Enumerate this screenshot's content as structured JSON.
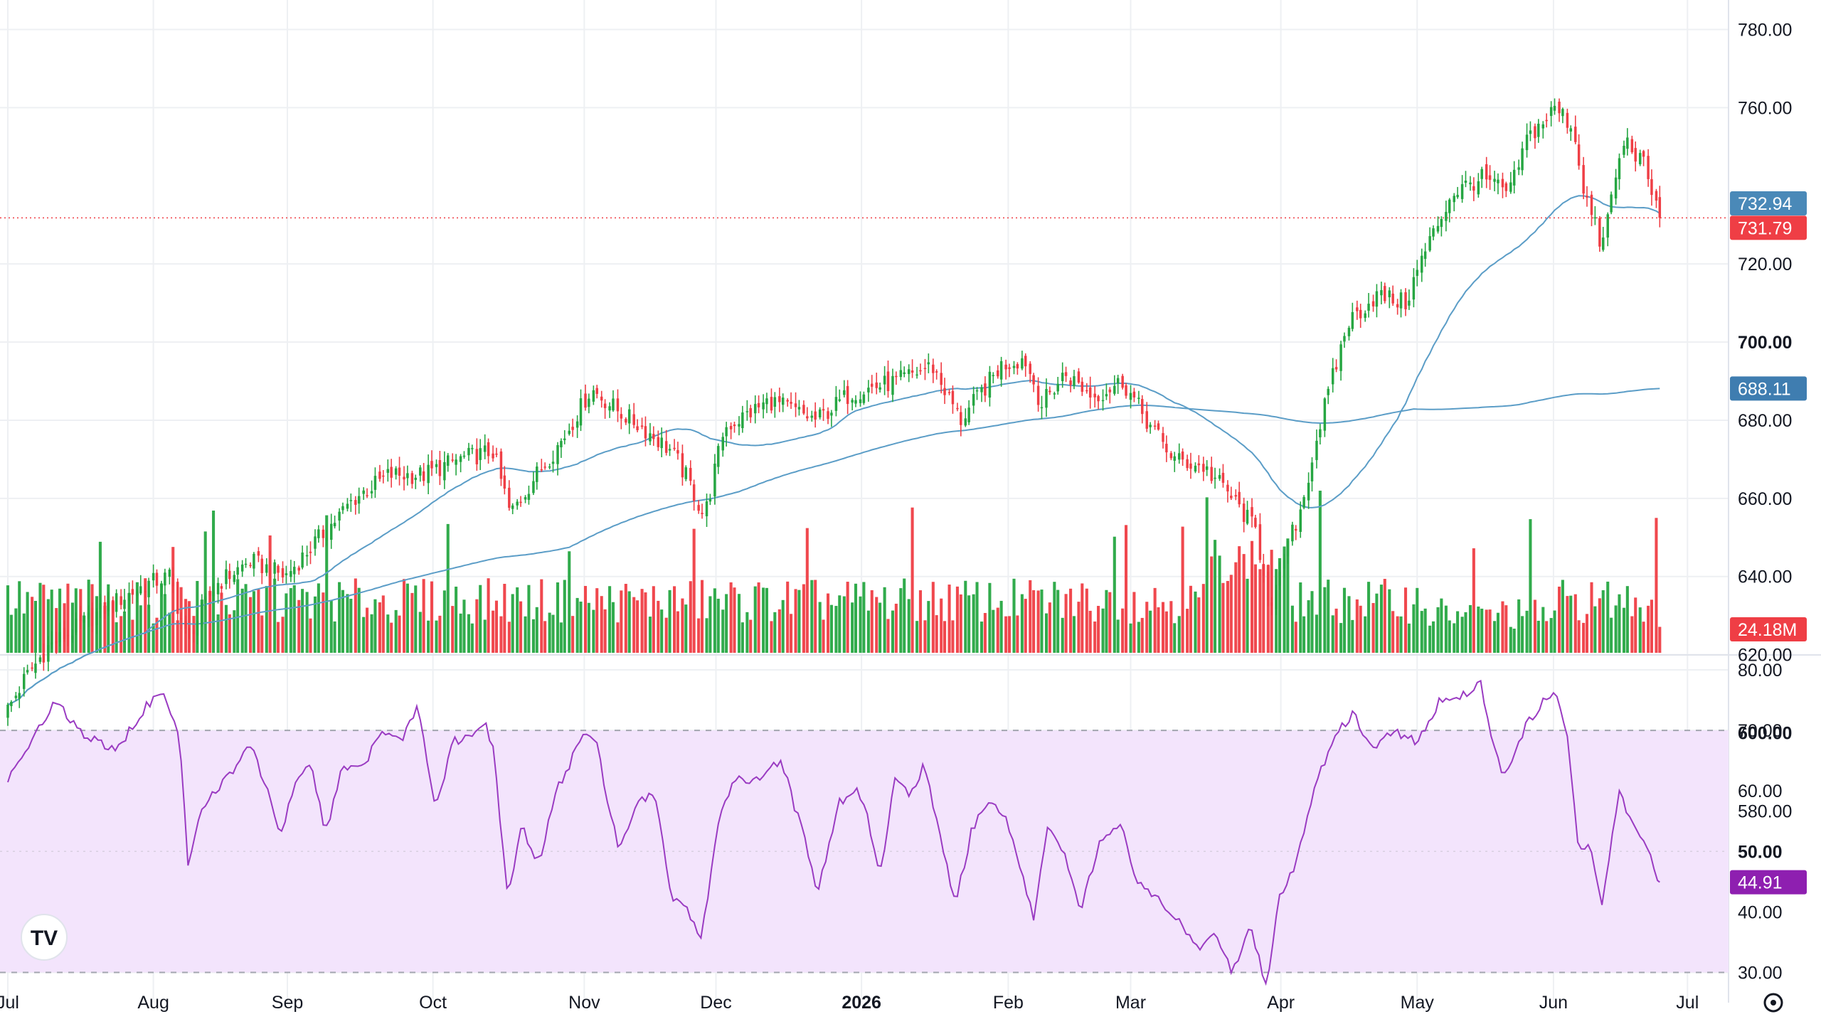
{
  "colors": {
    "up": "#26a642",
    "down": "#ef3e45",
    "ma": "#5b9dc7",
    "rsi": "#9a3bc2",
    "rsi_band": "#f3e4fc",
    "last_line": "#ef3e45",
    "grid": "#eef0f3",
    "ma_fast_badge": "#4a89b8",
    "ma_slow_badge": "#3f7db0",
    "volume_badge": "#ef3e45",
    "rsi_badge": "#8e1fb0"
  },
  "logo": "TV",
  "settings_icon": "gear-icon",
  "chart_data": [
    {
      "type": "candlestick",
      "name": "price",
      "ylim": [
        595,
        785
      ],
      "y_ticks": [
        "780.00",
        "760.00",
        "720.00",
        "700.00",
        "680.00",
        "660.00",
        "640.00",
        "620.00",
        "600.00",
        "580.00"
      ],
      "y_tick_values": [
        780,
        760,
        720,
        700,
        680,
        660,
        640,
        620,
        600,
        580
      ],
      "bold_ticks": [
        "700.00",
        "600.00"
      ],
      "x_labels": [
        "Jul",
        "Aug",
        "Sep",
        "Oct",
        "Nov",
        "Dec",
        "2026",
        "Feb",
        "Mar",
        "Apr",
        "May",
        "Jun",
        "Jul"
      ],
      "bold_x_labels": [
        "2026"
      ],
      "x_label_days": [
        0,
        126,
        242,
        368,
        499,
        613,
        739,
        866,
        972,
        1102,
        1220,
        1338,
        1454
      ],
      "last_price": 731.79,
      "last_price_label": "731.79",
      "ma_fast_label": "732.94",
      "ma_slow_label": "688.11",
      "anchors": [
        [
          0,
          606
        ],
        [
          15,
          614
        ],
        [
          35,
          622
        ],
        [
          60,
          627
        ],
        [
          90,
          633
        ],
        [
          120,
          638
        ],
        [
          140,
          640
        ],
        [
          155,
          624
        ],
        [
          180,
          638
        ],
        [
          210,
          644
        ],
        [
          240,
          640
        ],
        [
          270,
          650
        ],
        [
          300,
          660
        ],
        [
          330,
          666
        ],
        [
          360,
          666
        ],
        [
          390,
          670
        ],
        [
          420,
          672
        ],
        [
          435,
          656
        ],
        [
          455,
          665
        ],
        [
          480,
          675
        ],
        [
          505,
          688
        ],
        [
          530,
          682
        ],
        [
          550,
          678
        ],
        [
          575,
          672
        ],
        [
          590,
          664
        ],
        [
          603,
          655
        ],
        [
          620,
          678
        ],
        [
          660,
          685
        ],
        [
          700,
          680
        ],
        [
          730,
          687
        ],
        [
          770,
          690
        ],
        [
          800,
          694
        ],
        [
          825,
          680
        ],
        [
          860,
          694
        ],
        [
          880,
          696
        ],
        [
          895,
          684
        ],
        [
          915,
          692
        ],
        [
          940,
          686
        ],
        [
          965,
          690
        ],
        [
          990,
          678
        ],
        [
          1010,
          670
        ],
        [
          1035,
          668
        ],
        [
          1055,
          662
        ],
        [
          1080,
          652
        ],
        [
          1095,
          630
        ],
        [
          1105,
          645
        ],
        [
          1120,
          658
        ],
        [
          1135,
          678
        ],
        [
          1160,
          705
        ],
        [
          1185,
          712
        ],
        [
          1210,
          710
        ],
        [
          1225,
          722
        ],
        [
          1250,
          738
        ],
        [
          1275,
          742
        ],
        [
          1300,
          738
        ],
        [
          1315,
          752
        ],
        [
          1340,
          760
        ],
        [
          1355,
          755
        ],
        [
          1365,
          738
        ],
        [
          1380,
          724
        ],
        [
          1390,
          740
        ],
        [
          1400,
          752
        ],
        [
          1415,
          746
        ],
        [
          1430,
          732
        ]
      ]
    },
    {
      "type": "bar",
      "name": "volume",
      "volume_label": "24.18M"
    },
    {
      "type": "line",
      "name": "rsi",
      "ylim": [
        25,
        82
      ],
      "y_ticks": [
        "80.00",
        "70.00",
        "60.00",
        "50.00",
        "40.00",
        "30.00"
      ],
      "y_tick_values": [
        80,
        70,
        60,
        50,
        40,
        30
      ],
      "bold_ticks": [
        "50.00"
      ],
      "band": [
        30,
        70
      ],
      "last_label": "44.91",
      "anchors": [
        [
          0,
          62
        ],
        [
          20,
          68
        ],
        [
          42,
          75
        ],
        [
          60,
          70
        ],
        [
          80,
          68
        ],
        [
          95,
          67
        ],
        [
          120,
          74
        ],
        [
          135,
          76
        ],
        [
          148,
          70
        ],
        [
          156,
          48
        ],
        [
          170,
          58
        ],
        [
          190,
          62
        ],
        [
          210,
          68
        ],
        [
          225,
          60
        ],
        [
          236,
          53
        ],
        [
          250,
          62
        ],
        [
          262,
          65
        ],
        [
          275,
          53
        ],
        [
          290,
          64
        ],
        [
          310,
          65
        ],
        [
          325,
          70
        ],
        [
          340,
          68
        ],
        [
          355,
          74
        ],
        [
          370,
          57
        ],
        [
          385,
          68
        ],
        [
          400,
          69
        ],
        [
          413,
          71
        ],
        [
          420,
          67
        ],
        [
          433,
          42
        ],
        [
          445,
          54
        ],
        [
          460,
          48
        ],
        [
          475,
          60
        ],
        [
          490,
          66
        ],
        [
          500,
          70
        ],
        [
          510,
          68
        ],
        [
          517,
          60
        ],
        [
          530,
          50
        ],
        [
          545,
          58
        ],
        [
          560,
          60
        ],
        [
          575,
          42
        ],
        [
          588,
          40
        ],
        [
          600,
          35
        ],
        [
          615,
          55
        ],
        [
          630,
          62
        ],
        [
          650,
          62
        ],
        [
          670,
          65
        ],
        [
          680,
          58
        ],
        [
          690,
          52
        ],
        [
          700,
          43
        ],
        [
          720,
          58
        ],
        [
          735,
          61
        ],
        [
          745,
          55
        ],
        [
          755,
          46
        ],
        [
          768,
          62
        ],
        [
          780,
          59
        ],
        [
          793,
          64
        ],
        [
          805,
          55
        ],
        [
          820,
          41
        ],
        [
          835,
          54
        ],
        [
          850,
          58
        ],
        [
          865,
          55
        ],
        [
          880,
          45
        ],
        [
          888,
          39
        ],
        [
          900,
          54
        ],
        [
          915,
          50
        ],
        [
          928,
          40
        ],
        [
          945,
          51
        ],
        [
          963,
          55
        ],
        [
          978,
          45
        ],
        [
          995,
          42
        ],
        [
          1005,
          40
        ],
        [
          1015,
          38
        ],
        [
          1030,
          34
        ],
        [
          1045,
          37
        ],
        [
          1060,
          30
        ],
        [
          1075,
          38
        ],
        [
          1090,
          27
        ],
        [
          1100,
          42
        ],
        [
          1115,
          48
        ],
        [
          1128,
          58
        ],
        [
          1145,
          68
        ],
        [
          1165,
          73
        ],
        [
          1180,
          67
        ],
        [
          1200,
          70
        ],
        [
          1220,
          68
        ],
        [
          1240,
          75
        ],
        [
          1260,
          76
        ],
        [
          1275,
          78
        ],
        [
          1285,
          68
        ],
        [
          1295,
          62
        ],
        [
          1315,
          71
        ],
        [
          1330,
          75
        ],
        [
          1342,
          76
        ],
        [
          1350,
          69
        ],
        [
          1360,
          50
        ],
        [
          1370,
          51
        ],
        [
          1380,
          41
        ],
        [
          1395,
          60
        ],
        [
          1410,
          53
        ],
        [
          1420,
          50
        ],
        [
          1430,
          45
        ]
      ]
    }
  ]
}
